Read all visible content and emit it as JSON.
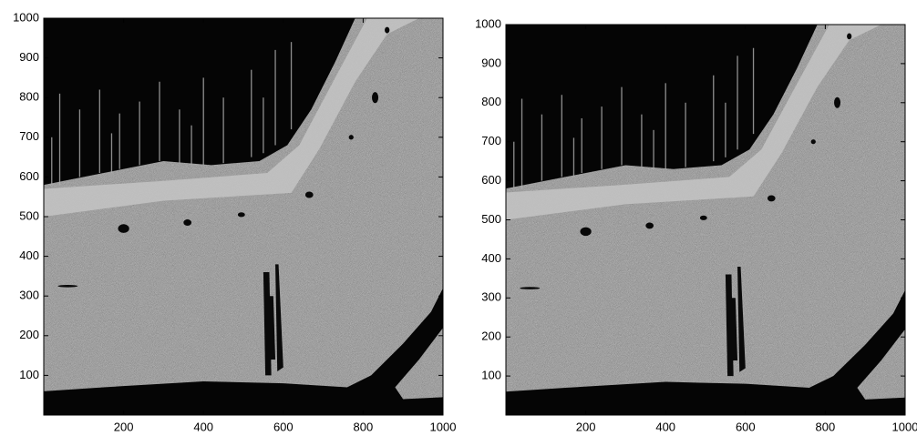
{
  "chart_data": [
    {
      "type": "image",
      "xlim": [
        0,
        1000
      ],
      "ylim": [
        0,
        1000
      ],
      "xticks": [
        200,
        400,
        600,
        800,
        1000
      ],
      "yticks": [
        100,
        200,
        300,
        400,
        500,
        600,
        700,
        800,
        900,
        1000
      ]
    },
    {
      "type": "image",
      "xlim": [
        0,
        1000
      ],
      "ylim": [
        0,
        1000
      ],
      "xticks": [
        200,
        400,
        600,
        800,
        1000
      ],
      "yticks": [
        100,
        200,
        300,
        400,
        500,
        600,
        700,
        800,
        900,
        1000
      ]
    }
  ]
}
